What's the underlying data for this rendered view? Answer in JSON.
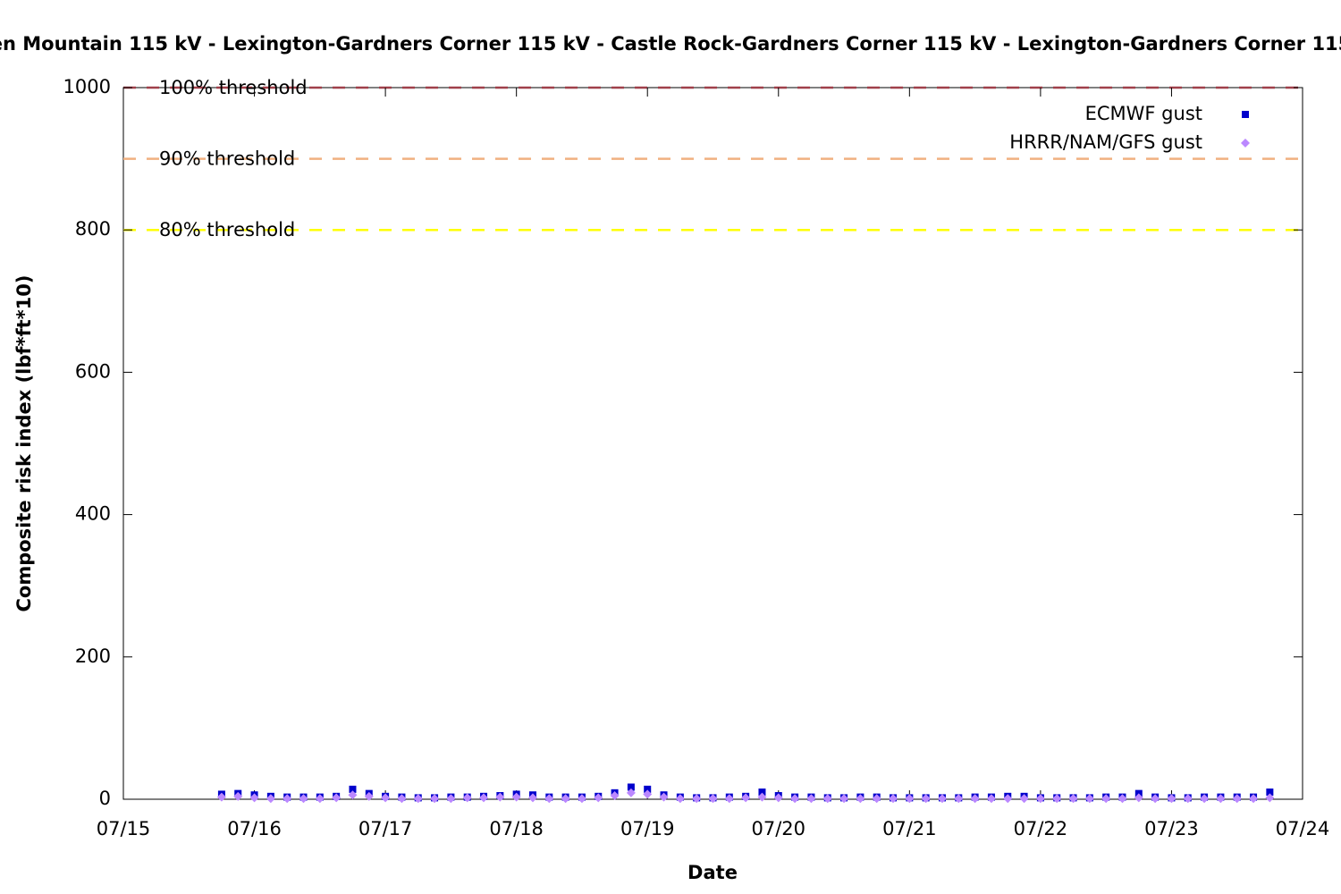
{
  "chart_data": {
    "type": "scatter",
    "title": "en Mountain 115 kV - Lexington-Gardners Corner 115 kV - Castle Rock-Gardners Corner 115 kV - Lexington-Gardners Corner 115",
    "x_label": "Date",
    "y_label": "Composite risk index (lbf*ft*10)",
    "xlim": [
      "07/15",
      "07/24"
    ],
    "xticks": [
      "07/15",
      "07/16",
      "07/17",
      "07/18",
      "07/19",
      "07/20",
      "07/21",
      "07/22",
      "07/23",
      "07/24"
    ],
    "ylim": [
      0,
      1000
    ],
    "yticks": [
      0,
      200,
      400,
      600,
      800,
      1000
    ],
    "thresholds": [
      {
        "label": "100% threshold",
        "value": 1000,
        "color": "#a0404a"
      },
      {
        "label": "90% threshold",
        "value": 900,
        "color": "#f0b080"
      },
      {
        "label": "80% threshold",
        "value": 800,
        "color": "#ffff00"
      }
    ],
    "legend": "upper right",
    "x": [
      "07/15 18:00",
      "07/15 21:00",
      "07/16 00:00",
      "07/16 03:00",
      "07/16 06:00",
      "07/16 09:00",
      "07/16 12:00",
      "07/16 15:00",
      "07/16 18:00",
      "07/16 21:00",
      "07/17 00:00",
      "07/17 03:00",
      "07/17 06:00",
      "07/17 09:00",
      "07/17 12:00",
      "07/17 15:00",
      "07/17 18:00",
      "07/17 21:00",
      "07/18 00:00",
      "07/18 03:00",
      "07/18 06:00",
      "07/18 09:00",
      "07/18 12:00",
      "07/18 15:00",
      "07/18 18:00",
      "07/18 21:00",
      "07/19 00:00",
      "07/19 03:00",
      "07/19 06:00",
      "07/19 09:00",
      "07/19 12:00",
      "07/19 15:00",
      "07/19 18:00",
      "07/19 21:00",
      "07/20 00:00",
      "07/20 03:00",
      "07/20 06:00",
      "07/20 09:00",
      "07/20 12:00",
      "07/20 15:00",
      "07/20 18:00",
      "07/20 21:00",
      "07/21 00:00",
      "07/21 03:00",
      "07/21 06:00",
      "07/21 09:00",
      "07/21 12:00",
      "07/21 15:00",
      "07/21 18:00",
      "07/21 21:00",
      "07/22 00:00",
      "07/22 03:00",
      "07/22 06:00",
      "07/22 09:00",
      "07/22 12:00",
      "07/22 15:00",
      "07/22 18:00",
      "07/22 21:00",
      "07/23 00:00",
      "07/23 03:00",
      "07/23 06:00",
      "07/23 09:00",
      "07/23 12:00",
      "07/23 15:00",
      "07/23 18:00"
    ],
    "series": [
      {
        "name": "ECMWF gust",
        "color": "#0000cc",
        "marker": "square",
        "values": [
          7,
          8,
          6,
          4,
          3,
          3,
          3,
          4,
          14,
          8,
          4,
          3,
          2,
          2,
          3,
          3,
          4,
          5,
          7,
          6,
          3,
          3,
          3,
          4,
          9,
          17,
          14,
          6,
          3,
          2,
          2,
          3,
          4,
          10,
          5,
          3,
          3,
          2,
          2,
          3,
          3,
          2,
          2,
          2,
          2,
          2,
          3,
          3,
          4,
          4,
          2,
          2,
          2,
          2,
          3,
          3,
          8,
          3,
          2,
          2,
          3,
          3,
          3,
          3,
          10
        ]
      },
      {
        "name": "HRRR/NAM/GFS gust",
        "color": "#bb88ff",
        "marker": "diamond",
        "values": [
          3,
          4,
          2,
          1,
          1,
          1,
          1,
          2,
          6,
          4,
          2,
          1,
          1,
          1,
          1,
          2,
          2,
          3,
          3,
          2,
          1,
          1,
          1,
          2,
          5,
          9,
          7,
          3,
          1,
          1,
          1,
          1,
          2,
          3,
          2,
          1,
          1,
          1,
          1,
          1,
          1,
          1,
          1,
          1,
          1,
          1,
          1,
          1,
          1,
          1,
          1,
          1,
          1,
          1,
          1,
          1,
          2,
          1,
          1,
          1,
          1,
          1,
          1,
          1,
          2
        ]
      }
    ]
  }
}
